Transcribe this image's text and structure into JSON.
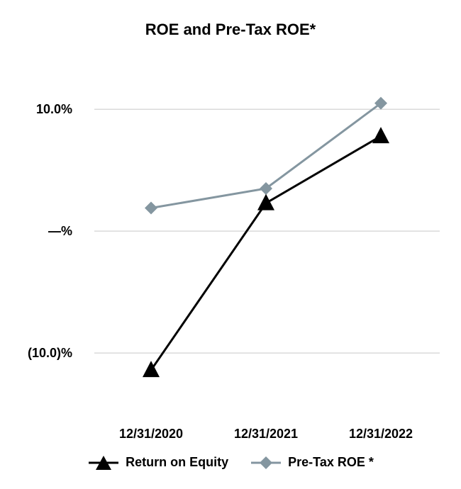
{
  "chart_data": {
    "type": "line",
    "title": "ROE and Pre-Tax ROE*",
    "categories": [
      "12/31/2020",
      "12/31/2021",
      "12/31/2022"
    ],
    "y_ticks": [
      {
        "value": 10,
        "label": "10.0%"
      },
      {
        "value": 0,
        "label": "—%"
      },
      {
        "value": -10,
        "label": "(10.0)%"
      }
    ],
    "ylim": [
      -13.6,
      14.9
    ],
    "grid": true,
    "legend_position": "bottom",
    "series": [
      {
        "name": "Return on Equity",
        "marker": "triangle",
        "color": "#000000",
        "values": [
          -11.4,
          2.3,
          7.8
        ]
      },
      {
        "name": "Pre-Tax ROE *",
        "marker": "diamond",
        "color": "#8496a0",
        "values": [
          1.9,
          3.5,
          10.5
        ]
      }
    ]
  }
}
